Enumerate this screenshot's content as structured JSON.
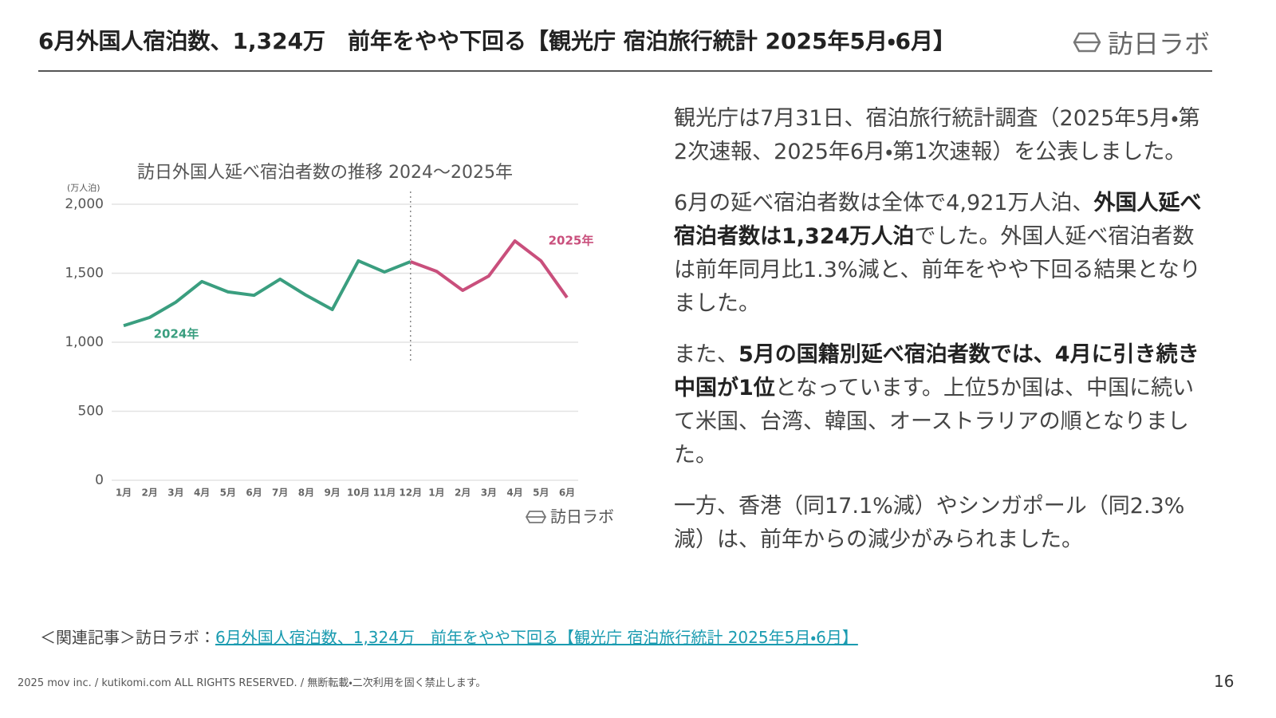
{
  "header": {
    "title": "6月外国人宿泊数、1,324万　前年をやや下回る【観光庁 宿泊旅行統計 2025年5月・6月】",
    "logo": "訪日ラボ"
  },
  "chart_data": {
    "type": "line",
    "title": "訪日外国人延べ宿泊者数の推移 2024～2025年",
    "y_label": "(万人泊)",
    "categories": [
      "1月",
      "2月",
      "3月",
      "4月",
      "5月",
      "6月",
      "7月",
      "8月",
      "9月",
      "10月",
      "11月",
      "12月",
      "1月",
      "2月",
      "3月",
      "4月",
      "5月",
      "6月"
    ],
    "series": [
      {
        "name": "2024年",
        "color": "#3a9e7f",
        "values": [
          1120,
          1180,
          1290,
          1440,
          1365,
          1340,
          1457,
          1340,
          1237,
          1590,
          1509,
          1584,
          null,
          null,
          null,
          null,
          null,
          null
        ]
      },
      {
        "name": "2025年",
        "color": "#c94f7c",
        "values": [
          null,
          null,
          null,
          null,
          null,
          null,
          null,
          null,
          null,
          null,
          null,
          1584,
          1514,
          1376,
          1480,
          1734,
          1590,
          1324
        ]
      }
    ],
    "ylim": [
      0,
      2000
    ],
    "yticks": [
      0,
      500,
      {
        "value": 1000,
        "label": "1,000"
      },
      {
        "value": 1500,
        "label": "1,500"
      },
      {
        "value": 2000,
        "label": "2,000"
      }
    ],
    "grid": true,
    "logo": "訪日ラボ"
  },
  "body": {
    "paragraphs": [
      {
        "runs": [
          {
            "text": "観光庁は7月31日、宿泊旅行統計調査（2025年5月・第2次速報、2025年6月・第1次速報）を公表しました。",
            "bold": false
          }
        ]
      },
      {
        "runs": [
          {
            "text": "6月の延べ宿泊者数は全体で4,921万人泊、",
            "bold": false
          },
          {
            "text": "外国人延べ宿泊者数は1,324万人泊",
            "bold": true
          },
          {
            "text": "でした。外国人延べ宿泊者数は前年同月比1.3%減と、前年をやや下回る結果となりました。",
            "bold": false
          }
        ]
      },
      {
        "runs": [
          {
            "text": "また、",
            "bold": false
          },
          {
            "text": "5月の国籍別延べ宿泊者数では、4月に引き続き中国が1位",
            "bold": true
          },
          {
            "text": "となっています。上位5か国は、中国に続いて米国、台湾、韓国、オーストラリアの順となりました。",
            "bold": false
          }
        ]
      },
      {
        "runs": [
          {
            "text": "一方、香港（同17.1%減）やシンガポール（同2.3%減）は、前年からの減少がみられました。",
            "bold": false
          }
        ]
      }
    ]
  },
  "related": {
    "prefix": "＜関連記事＞訪日ラボ：",
    "link": "6月外国人宿泊数、1,324万　前年をやや下回る【観光庁 宿泊旅行統計 2025年5月・6月】"
  },
  "footer": {
    "copyright": "2025 mov inc. / kutikomi.com ALL RIGHTS RESERVED. / 無断転載・二次利用を固く禁止します。",
    "page": "16"
  }
}
